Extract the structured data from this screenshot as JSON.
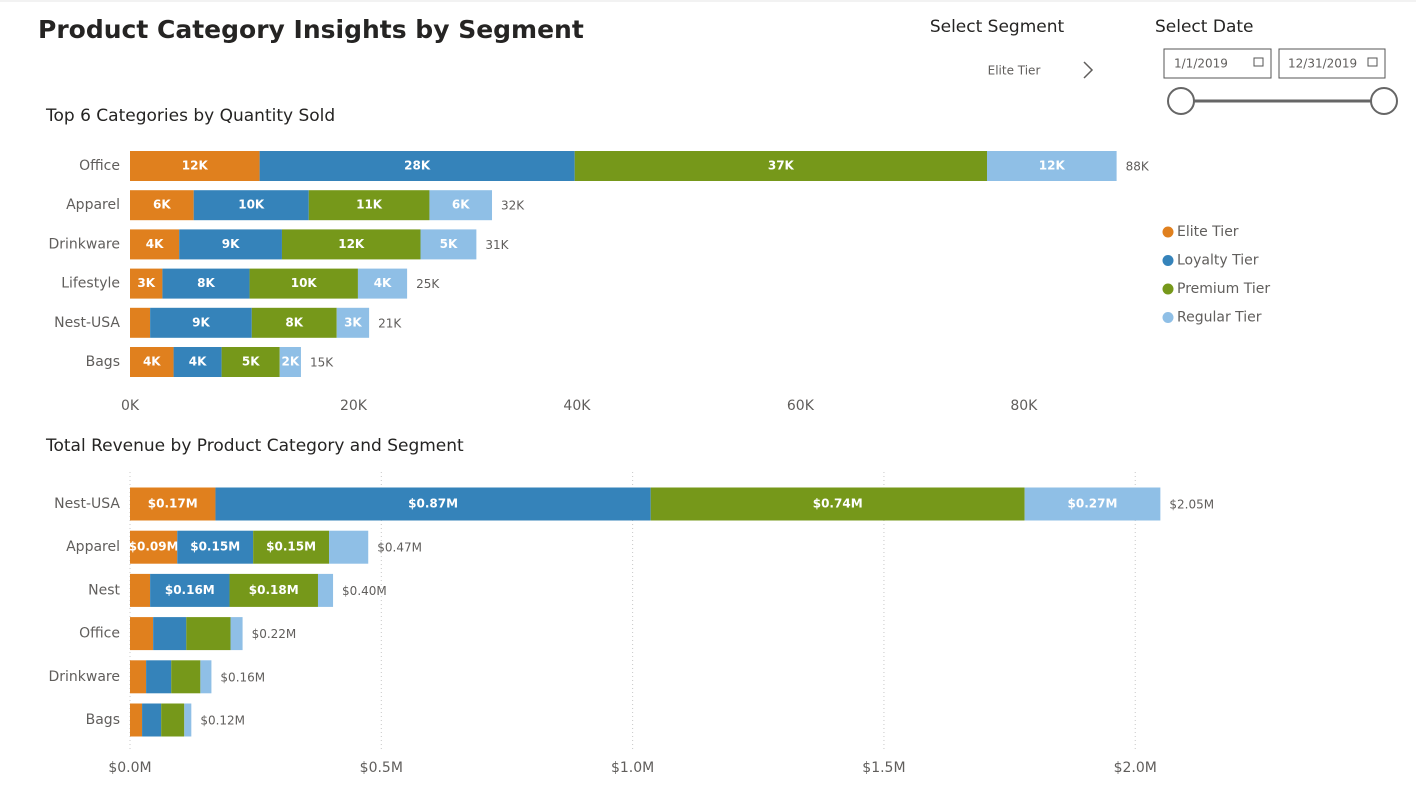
{
  "header": {
    "title": "Product Category Insights by Segment"
  },
  "filters": {
    "segment_label": "Select Segment",
    "segment_value": "Elite Tier",
    "date_label": "Select Date",
    "date_start": "1/1/2019",
    "date_end": "12/31/2019"
  },
  "chart_data": [
    {
      "type": "bar",
      "orientation": "horizontal",
      "stacked": true,
      "title": "Top 6 Categories by Quantity Sold",
      "categories": [
        "Office",
        "Apparel",
        "Drinkware",
        "Lifestyle",
        "Nest-USA",
        "Bags"
      ],
      "series": [
        {
          "name": "Elite Tier",
          "color": "#e0801e",
          "values": [
            11600,
            5700,
            4400,
            2900,
            1800,
            3900
          ],
          "value_labels": [
            "12K",
            "6K",
            "4K",
            "3K",
            null,
            "4K"
          ]
        },
        {
          "name": "Loyalty Tier",
          "color": "#3583ba",
          "values": [
            28200,
            10300,
            9200,
            7800,
            9100,
            4300
          ],
          "value_labels": [
            "28K",
            "10K",
            "9K",
            "8K",
            "9K",
            "4K"
          ]
        },
        {
          "name": "Premium Tier",
          "color": "#76981a",
          "values": [
            36900,
            10800,
            12400,
            9700,
            7600,
            5200
          ],
          "value_labels": [
            "37K",
            "11K",
            "12K",
            "10K",
            "8K",
            "5K"
          ]
        },
        {
          "name": "Regular Tier",
          "color": "#8fbfe6",
          "values": [
            11600,
            5600,
            5000,
            4400,
            2900,
            1900
          ],
          "value_labels": [
            "12K",
            "6K",
            "5K",
            "4K",
            "3K",
            "2K"
          ]
        }
      ],
      "totals": [
        88300,
        32400,
        31000,
        24800,
        21400,
        15300
      ],
      "total_labels": [
        "88K",
        "32K",
        "31K",
        "25K",
        "21K",
        "15K"
      ],
      "xlim": [
        0,
        90000
      ],
      "xticks": [
        {
          "value": 0,
          "label": "0K"
        },
        {
          "value": 20000,
          "label": "20K"
        },
        {
          "value": 40000,
          "label": "40K"
        },
        {
          "value": 60000,
          "label": "60K"
        },
        {
          "value": 80000,
          "label": "80K"
        }
      ],
      "grid": false,
      "legend": "right"
    },
    {
      "type": "bar",
      "orientation": "horizontal",
      "stacked": true,
      "title": "Total Revenue by Product Category and Segment",
      "categories": [
        "Nest-USA",
        "Apparel",
        "Nest",
        "Office",
        "Drinkware",
        "Bags"
      ],
      "series": [
        {
          "color": "#e0801e",
          "values": [
            170000,
            94000,
            40000,
            46000,
            32000,
            24000
          ],
          "value_labels": [
            "$0.17M",
            "$0.09M",
            null,
            null,
            null,
            null
          ]
        },
        {
          "color": "#3583ba",
          "values": [
            866000,
            151000,
            158000,
            66000,
            50000,
            38000
          ],
          "value_labels": [
            "$0.87M",
            "$0.15M",
            "$0.16M",
            null,
            null,
            null
          ]
        },
        {
          "color": "#76981a",
          "values": [
            744000,
            151000,
            176000,
            88000,
            58000,
            46000
          ],
          "value_labels": [
            "$0.74M",
            "$0.15M",
            "$0.18M",
            null,
            null,
            null
          ]
        },
        {
          "color": "#8fbfe6",
          "values": [
            270000,
            78000,
            30000,
            24000,
            22000,
            14000
          ],
          "value_labels": [
            "$0.27M",
            null,
            null,
            null,
            null,
            null
          ]
        }
      ],
      "totals": [
        2050000,
        474000,
        404000,
        224000,
        162000,
        122000
      ],
      "total_labels": [
        "$2.05M",
        "$0.47M",
        "$0.40M",
        "$0.22M",
        "$0.16M",
        "$0.12M"
      ],
      "xlim": [
        0,
        2100000
      ],
      "xticks": [
        {
          "value": 0,
          "label": "$0.0M"
        },
        {
          "value": 500000,
          "label": "$0.5M"
        },
        {
          "value": 1000000,
          "label": "$1.0M"
        },
        {
          "value": 1500000,
          "label": "$1.5M"
        },
        {
          "value": 2000000,
          "label": "$2.0M"
        }
      ],
      "grid": true
    }
  ]
}
